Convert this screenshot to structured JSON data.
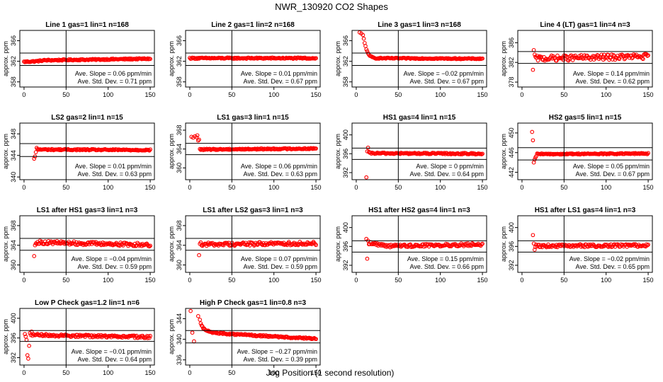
{
  "figure": {
    "title": "NWR_130920  CO2 Shapes",
    "xlabel": "Jog Position (1 second resolution)"
  },
  "colors": {
    "points": "#ff0000",
    "axes": "#000000"
  },
  "chart_data": [
    {
      "type": "scatter",
      "title": "Line 1 gas=1 lin=1 n=168",
      "ylabel": "approx. ppm",
      "xlim": [
        -5,
        155
      ],
      "ylim": [
        357,
        368
      ],
      "xticks": [
        0,
        50,
        100,
        150
      ],
      "yticks": [
        358,
        362,
        366
      ],
      "vline": 50,
      "hlines": [
        361.2,
        363.6
      ],
      "slope": "Ave. Slope = 0.06  ppm/min",
      "stddev": "Ave. Std. Dev. = 0.71  ppm",
      "points": {
        "x_start": 0,
        "x_end": 150,
        "count": 150,
        "levels": [
          [
            0,
            361.9
          ],
          [
            14,
            362.0
          ],
          [
            25,
            362.2
          ],
          [
            150,
            362.5
          ]
        ],
        "noise": 0.12,
        "extra": []
      }
    },
    {
      "type": "scatter",
      "title": "Line 2 gas=1 lin=2 n=168",
      "ylabel": "approx. ppm",
      "xlim": [
        -5,
        155
      ],
      "ylim": [
        357,
        368
      ],
      "xticks": [
        0,
        50,
        100,
        150
      ],
      "yticks": [
        358,
        362,
        366
      ],
      "vline": 50,
      "hlines": [
        361.2,
        363.6
      ],
      "slope": "Ave. Slope = 0.01  ppm/min",
      "stddev": "Ave. Std. Dev. = 0.67  ppm",
      "points": {
        "x_start": 0,
        "x_end": 150,
        "count": 150,
        "levels": [
          [
            0,
            362.6
          ],
          [
            150,
            362.6
          ]
        ],
        "noise": 0.12,
        "extra": []
      }
    },
    {
      "type": "scatter",
      "title": "Line 3 gas=1 lin=3 n=168",
      "ylabel": "approx. ppm",
      "xlim": [
        -5,
        155
      ],
      "ylim": [
        357,
        368
      ],
      "xticks": [
        0,
        50,
        100,
        150
      ],
      "yticks": [
        358,
        362,
        366
      ],
      "vline": 50,
      "hlines": [
        361.2,
        363.6
      ],
      "slope": "Ave. Slope = −0.02  ppm/min",
      "stddev": "Ave. Std. Dev. = 0.67  ppm",
      "points": {
        "x_start": 10,
        "x_end": 150,
        "count": 140,
        "levels": [
          [
            10,
            365.5
          ],
          [
            12,
            364.3
          ],
          [
            16,
            363.0
          ],
          [
            22,
            362.6
          ],
          [
            150,
            362.5
          ]
        ],
        "noise": 0.1,
        "extra": [
          [
            4,
            367.6
          ],
          [
            6,
            367.4
          ],
          [
            8,
            367.1
          ],
          [
            9,
            366.4
          ]
        ]
      }
    },
    {
      "type": "scatter",
      "title": "Line 4 (LT) gas=1 lin=4 n=3",
      "ylabel": "approx. ppm",
      "xlim": [
        -5,
        155
      ],
      "ylim": [
        377,
        388.5
      ],
      "xticks": [
        0,
        50,
        100,
        150
      ],
      "yticks": [
        378,
        382,
        386
      ],
      "vline": 50,
      "hlines": [
        381.8,
        384.2
      ],
      "slope": "Ave. Slope = 0.14  ppm/min",
      "stddev": "Ave. Std. Dev. = 0.62  ppm",
      "points": {
        "x_start": 16,
        "x_end": 150,
        "count": 134,
        "levels": [
          [
            16,
            382.8
          ],
          [
            150,
            383.2
          ]
        ],
        "noise": 0.55,
        "extra": [
          [
            13,
            380.5
          ],
          [
            14,
            384.5
          ],
          [
            15,
            383.6
          ]
        ]
      }
    },
    {
      "type": "scatter",
      "title": "LS2 gas=2 lin=1 n=15",
      "ylabel": "approx. ppm",
      "xlim": [
        -5,
        155
      ],
      "ylim": [
        339.5,
        350
      ],
      "xticks": [
        0,
        50,
        100,
        150
      ],
      "yticks": [
        340,
        344,
        348
      ],
      "vline": 50,
      "hlines": [
        343.8,
        346.2
      ],
      "slope": "Ave. Slope = 0.01  ppm/min",
      "stddev": "Ave. Std. Dev. = 0.63  ppm",
      "points": {
        "x_start": 16,
        "x_end": 150,
        "count": 134,
        "levels": [
          [
            16,
            345.1
          ],
          [
            150,
            345.0
          ]
        ],
        "noise": 0.12,
        "extra": [
          [
            12,
            343.4
          ],
          [
            13,
            343.8
          ],
          [
            14,
            344.6
          ],
          [
            15,
            345.4
          ]
        ]
      }
    },
    {
      "type": "scatter",
      "title": "LS1 gas=3 lin=1 n=15",
      "ylabel": "approx. ppm",
      "xlim": [
        -5,
        155
      ],
      "ylim": [
        357.5,
        369.5
      ],
      "xticks": [
        0,
        50,
        100,
        150
      ],
      "yticks": [
        360,
        364,
        368
      ],
      "vline": 50,
      "hlines": [
        362.8,
        365.2
      ],
      "slope": "Ave. Slope = 0.06  ppm/min",
      "stddev": "Ave. Std. Dev. = 0.63  ppm",
      "points": {
        "x_start": 12,
        "x_end": 150,
        "count": 138,
        "levels": [
          [
            12,
            363.9
          ],
          [
            150,
            364.1
          ]
        ],
        "noise": 0.13,
        "extra": [
          [
            2,
            366.6
          ],
          [
            4,
            366.4
          ],
          [
            6,
            366.7
          ],
          [
            8,
            366.5
          ],
          [
            9,
            366.9
          ],
          [
            10,
            365.8
          ],
          [
            11,
            366.0
          ]
        ]
      }
    },
    {
      "type": "scatter",
      "title": "HS1 gas=4 lin=1 n=15",
      "ylabel": "approx. ppm",
      "xlim": [
        -5,
        155
      ],
      "ylim": [
        390.5,
        402.5
      ],
      "xticks": [
        0,
        50,
        100,
        150
      ],
      "yticks": [
        392,
        396,
        400
      ],
      "vline": 50,
      "hlines": [
        394.8,
        397.2
      ],
      "slope": "Ave. Slope = 0  ppm/min",
      "stddev": "Ave. Std. Dev. = 0.64  ppm",
      "points": {
        "x_start": 16,
        "x_end": 150,
        "count": 134,
        "levels": [
          [
            16,
            396.1
          ],
          [
            150,
            396.0
          ]
        ],
        "noise": 0.15,
        "extra": [
          [
            12,
            391.0
          ],
          [
            13,
            396.5
          ],
          [
            14,
            397.3
          ],
          [
            15,
            396.4
          ]
        ]
      }
    },
    {
      "type": "scatter",
      "title": "HS2 gas=5 lin=1 n=15",
      "ylabel": "approx. ppm",
      "xlim": [
        -5,
        155
      ],
      "ylim": [
        440.5,
        452
      ],
      "xticks": [
        0,
        50,
        100,
        150
      ],
      "yticks": [
        442,
        446,
        450
      ],
      "vline": 50,
      "hlines": [
        444.5,
        447
      ],
      "slope": "Ave. Slope = 0.05  ppm/min",
      "stddev": "Ave. Std. Dev. = 0.67  ppm",
      "points": {
        "x_start": 18,
        "x_end": 150,
        "count": 132,
        "levels": [
          [
            18,
            445.7
          ],
          [
            150,
            445.8
          ]
        ],
        "noise": 0.12,
        "extra": [
          [
            12,
            450.2
          ],
          [
            13,
            448.5
          ],
          [
            14,
            444.0
          ],
          [
            15,
            444.6
          ],
          [
            16,
            445.0
          ],
          [
            17,
            445.3
          ]
        ]
      }
    },
    {
      "type": "scatter",
      "title": "LS1 after HS1 gas=3 lin=1 n=3",
      "ylabel": "approx. ppm",
      "xlim": [
        -5,
        155
      ],
      "ylim": [
        358.5,
        370
      ],
      "xticks": [
        0,
        50,
        100,
        150
      ],
      "yticks": [
        360,
        364,
        368
      ],
      "vline": 50,
      "hlines": [
        363,
        365.4
      ],
      "slope": "Ave. Slope = −0.04  ppm/min",
      "stddev": "Ave. Std. Dev. = 0.59  ppm",
      "points": {
        "x_start": 15,
        "x_end": 150,
        "count": 135,
        "levels": [
          [
            15,
            364.6
          ],
          [
            150,
            364.1
          ]
        ],
        "noise": 0.35,
        "extra": [
          [
            12,
            361.8
          ],
          [
            13,
            364.0
          ],
          [
            14,
            364.4
          ]
        ]
      }
    },
    {
      "type": "scatter",
      "title": "LS1 after LS2 gas=3 lin=1 n=3",
      "ylabel": "approx. ppm",
      "xlim": [
        -5,
        155
      ],
      "ylim": [
        358.5,
        370
      ],
      "xticks": [
        0,
        50,
        100,
        150
      ],
      "yticks": [
        360,
        364,
        368
      ],
      "vline": 50,
      "hlines": [
        363,
        365.4
      ],
      "slope": "Ave. Slope = 0.07  ppm/min",
      "stddev": "Ave. Std. Dev. = 0.59  ppm",
      "points": {
        "x_start": 15,
        "x_end": 150,
        "count": 135,
        "levels": [
          [
            15,
            364.2
          ],
          [
            150,
            364.4
          ]
        ],
        "noise": 0.35,
        "extra": [
          [
            11,
            362.0
          ],
          [
            12,
            364.3
          ],
          [
            13,
            364.6
          ],
          [
            14,
            364.0
          ]
        ]
      }
    },
    {
      "type": "scatter",
      "title": "HS1 after HS2 gas=4 lin=1 n=3",
      "ylabel": "approx. ppm",
      "xlim": [
        -5,
        155
      ],
      "ylim": [
        390.5,
        402.5
      ],
      "xticks": [
        0,
        50,
        100,
        150
      ],
      "yticks": [
        392,
        396,
        400
      ],
      "vline": 50,
      "hlines": [
        394.8,
        397.2
      ],
      "slope": "Ave. Slope = 0.15  ppm/min",
      "stddev": "Ave. Std. Dev. = 0.66  ppm",
      "points": {
        "x_start": 15,
        "x_end": 150,
        "count": 135,
        "levels": [
          [
            15,
            396.7
          ],
          [
            40,
            396.1
          ],
          [
            150,
            396.4
          ]
        ],
        "noise": 0.3,
        "extra": [
          [
            12,
            397.6
          ],
          [
            13,
            393.4
          ],
          [
            14,
            397.2
          ]
        ]
      }
    },
    {
      "type": "scatter",
      "title": "HS1 after LS1 gas=4 lin=1 n=3",
      "ylabel": "approx. ppm",
      "xlim": [
        -5,
        155
      ],
      "ylim": [
        390.5,
        402.5
      ],
      "xticks": [
        0,
        50,
        100,
        150
      ],
      "yticks": [
        392,
        396,
        400
      ],
      "vline": 50,
      "hlines": [
        394.8,
        397.2
      ],
      "slope": "Ave. Slope = −0.02  ppm/min",
      "stddev": "Ave. Std. Dev. = 0.65  ppm",
      "points": {
        "x_start": 16,
        "x_end": 150,
        "count": 134,
        "levels": [
          [
            16,
            396.1
          ],
          [
            150,
            396.2
          ]
        ],
        "noise": 0.3,
        "extra": [
          [
            13,
            398.4
          ],
          [
            14,
            396.6
          ],
          [
            15,
            395.3
          ]
        ]
      }
    },
    {
      "type": "scatter",
      "title": "Low P Check gas=1.2 lin=1 n=6",
      "ylabel": "approx. ppm",
      "xlim": [
        -5,
        155
      ],
      "ylim": [
        390.5,
        402
      ],
      "xticks": [
        0,
        50,
        100,
        150
      ],
      "yticks": [
        392,
        396,
        400
      ],
      "vline": 50,
      "hlines": [
        395.3,
        397.5
      ],
      "slope": "Ave. Slope = −0.01  ppm/min",
      "stddev": "Ave. Std. Dev. = 0.64  ppm",
      "points": {
        "x_start": 10,
        "x_end": 150,
        "count": 140,
        "levels": [
          [
            10,
            396.6
          ],
          [
            150,
            396.2
          ]
        ],
        "noise": 0.25,
        "extra": [
          [
            1,
            396.8
          ],
          [
            2,
            396.3
          ],
          [
            3,
            395.6
          ],
          [
            4,
            392.5
          ],
          [
            5,
            391.8
          ],
          [
            6,
            394.4
          ],
          [
            7,
            397.0
          ],
          [
            8,
            396.6
          ],
          [
            9,
            397.3
          ]
        ]
      }
    },
    {
      "type": "scatter",
      "title": "High P Check gas=1 lin=0.8 n=3",
      "ylabel": "approx. ppm",
      "xlim": [
        -5,
        155
      ],
      "ylim": [
        335,
        346
      ],
      "xticks": [
        0,
        50,
        100,
        150
      ],
      "yticks": [
        336,
        340,
        344
      ],
      "vline": 50,
      "hlines": [
        339.3,
        341.7
      ],
      "slope": "Ave. Slope = −0.27  ppm/min",
      "stddev": "Ave. Std. Dev. = 0.39  ppm",
      "points": {
        "x_start": 16,
        "x_end": 150,
        "count": 134,
        "levels": [
          [
            16,
            342.2
          ],
          [
            25,
            341.3
          ],
          [
            60,
            340.9
          ],
          [
            150,
            340.1
          ]
        ],
        "noise": 0.15,
        "extra": [
          [
            1,
            345.5
          ],
          [
            3,
            341.3
          ],
          [
            5,
            339.6
          ],
          [
            10,
            344.5
          ],
          [
            12,
            343.8
          ],
          [
            13,
            343.1
          ],
          [
            14,
            342.7
          ],
          [
            15,
            342.5
          ]
        ]
      }
    }
  ]
}
